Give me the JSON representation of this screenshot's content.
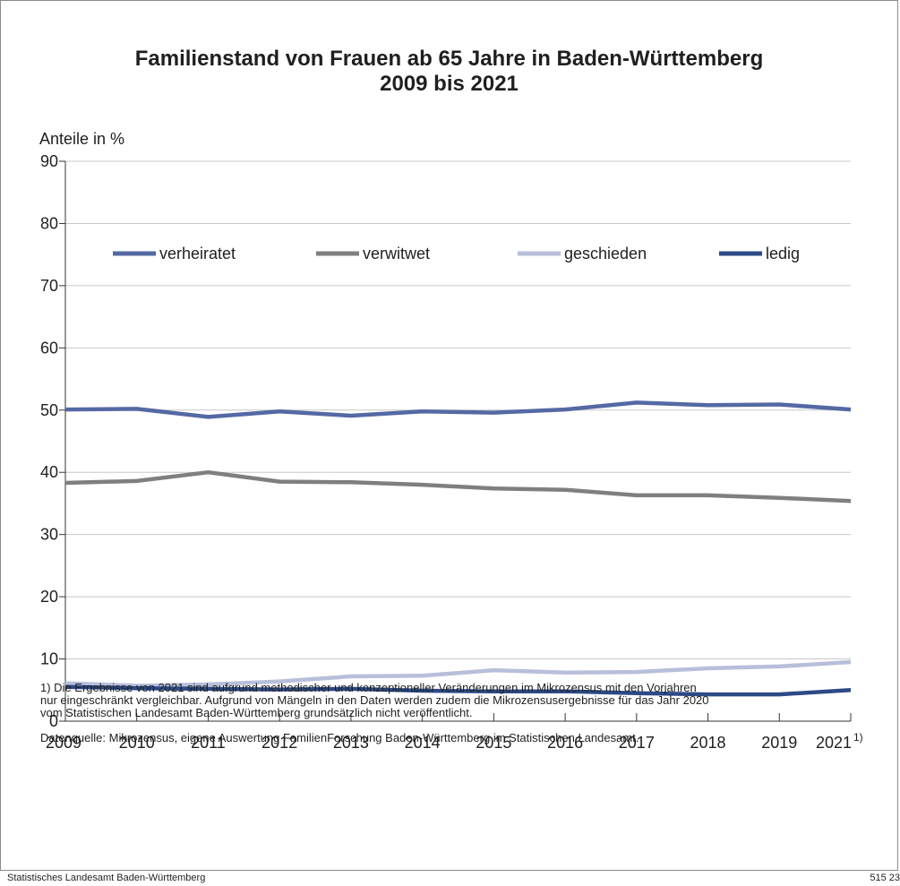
{
  "chart_data": {
    "type": "line",
    "title": "Familienstand von Frauen ab 65 Jahre in Baden-Württemberg",
    "subtitle": "2009 bis 2021",
    "ylabel": "Anteile in %",
    "xlabel": "",
    "ylim": [
      0,
      90
    ],
    "yticks": [
      0,
      10,
      20,
      30,
      40,
      50,
      60,
      70,
      80,
      90
    ],
    "x": [
      "2009",
      "2010",
      "2011",
      "2012",
      "2013",
      "2014",
      "2015",
      "2016",
      "2017",
      "2018",
      "2019",
      "2021"
    ],
    "last_x_footnote_marker": "1)",
    "grid": "horizontal",
    "legend_position": "top",
    "series": [
      {
        "name": "verheiratet",
        "color": "#5469a4",
        "values": [
          50.1,
          50.2,
          48.9,
          49.8,
          49.1,
          49.8,
          49.6,
          50.1,
          51.2,
          50.8,
          50.9,
          50.1
        ]
      },
      {
        "name": "verwitwet",
        "color": "#7f7f7f",
        "values": [
          38.3,
          38.6,
          40.0,
          38.5,
          38.4,
          38.0,
          37.4,
          37.2,
          36.3,
          36.3,
          35.9,
          35.4
        ]
      },
      {
        "name": "geschieden",
        "color": "#b8bfdb",
        "values": [
          6.1,
          5.7,
          5.9,
          6.4,
          7.2,
          7.3,
          8.2,
          7.8,
          7.9,
          8.5,
          8.8,
          9.5
        ]
      },
      {
        "name": "ledig",
        "color": "#2d4a86",
        "values": [
          5.5,
          5.3,
          5.2,
          5.1,
          5.2,
          4.9,
          4.8,
          4.8,
          4.5,
          4.3,
          4.3,
          5.0
        ]
      }
    ]
  },
  "footnotes": {
    "note1_line1": "1) Die Ergebnisse von 2021 sind aufgrund methodischer und konzeptioneller Veränderungen im Mikrozensus mit den Vorjahren",
    "note1_line2": "nur eingeschränkt vergleichbar. Aufgrund von Mängeln in den Daten werden zudem die Mikrozensusergebnisse für das Jahr 2020",
    "note1_line3": "vom Statistischen Landesamt Baden-Württemberg grundsätzlich nicht veröffentlicht.",
    "source": "Datenquelle: Mikrozensus, eigene Auswertung FamilienForschung Baden-Württemberg im Statistischen Landesamt."
  },
  "footer": {
    "publisher": "Statistisches Landesamt Baden-Württemberg",
    "code": "515 23"
  }
}
